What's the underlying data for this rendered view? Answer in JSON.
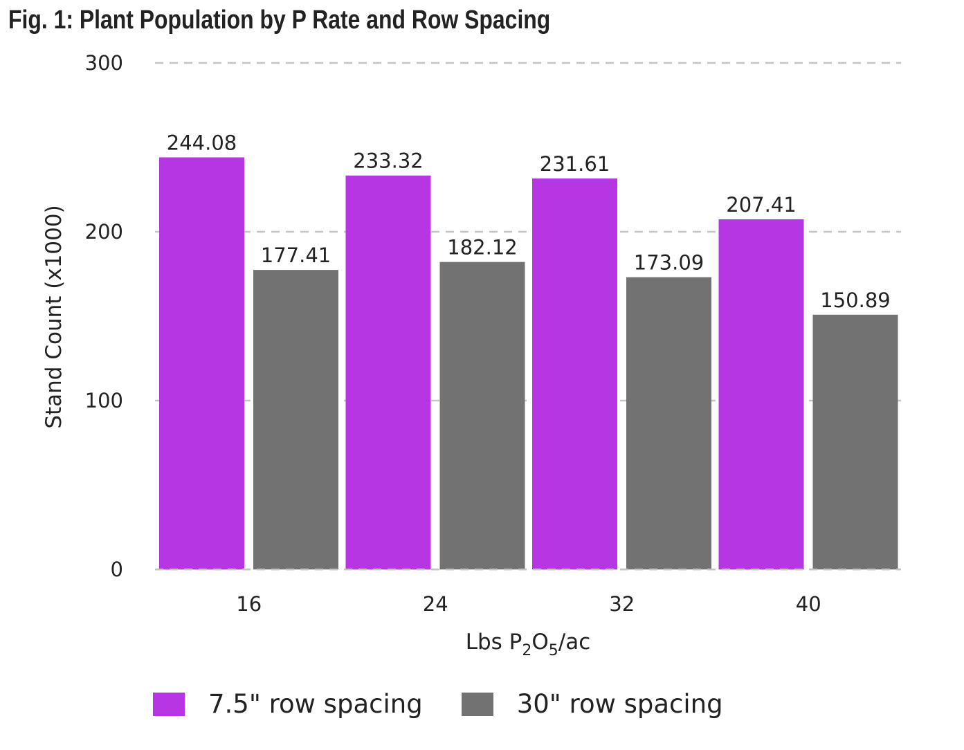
{
  "chart_data": {
    "type": "bar",
    "title": "Fig. 1: Plant Population by P Rate and Row Spacing",
    "xlabel_parts": [
      "Lbs P",
      "2",
      "O",
      "5",
      "/ac"
    ],
    "ylabel": "Stand Count (x1000)",
    "categories": [
      "16",
      "24",
      "32",
      "40"
    ],
    "ylim": [
      0,
      300
    ],
    "yticks": [
      0,
      100,
      200,
      300
    ],
    "grid": true,
    "legend_position": "bottom",
    "series": [
      {
        "name": "7.5\" row spacing",
        "color": "#b536e2",
        "values": [
          244.08,
          233.32,
          231.61,
          207.41
        ],
        "labels": [
          "244.08",
          "233.32",
          "231.61",
          "207.41"
        ]
      },
      {
        "name": "30\" row spacing",
        "color": "#727272",
        "values": [
          177.41,
          182.12,
          173.09,
          150.89
        ],
        "labels": [
          "177.41",
          "182.12",
          "173.09",
          "150.89"
        ]
      }
    ]
  }
}
